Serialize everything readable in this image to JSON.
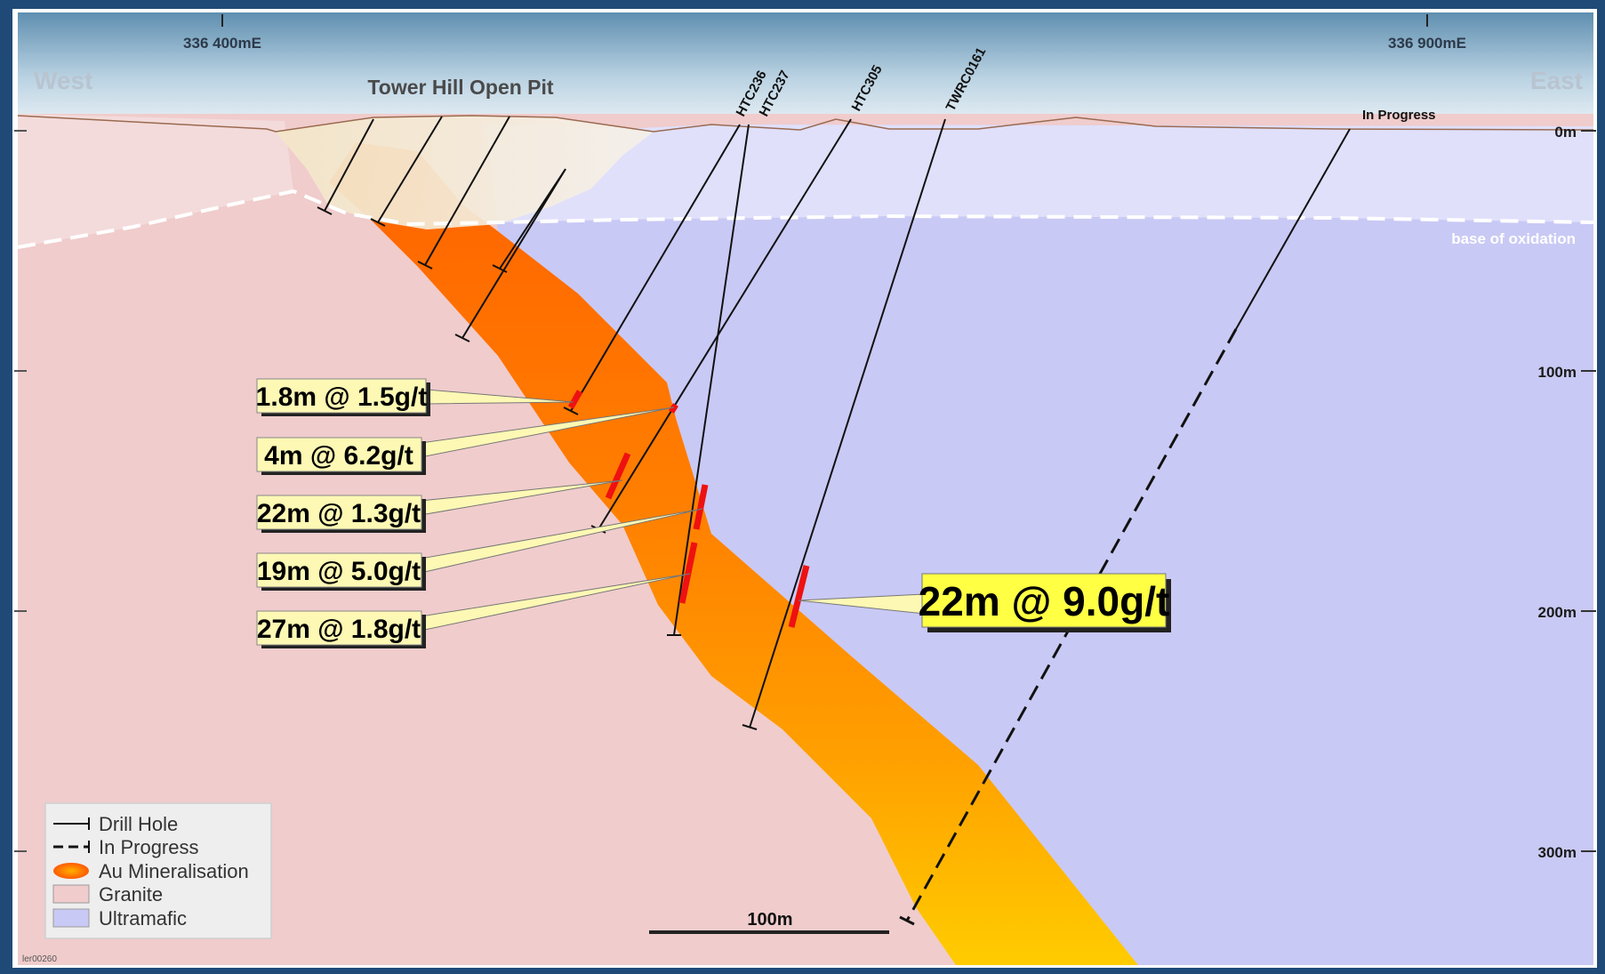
{
  "directions": {
    "west": "West",
    "east": "East"
  },
  "eastings": [
    "336 400mE",
    "336 900mE"
  ],
  "pit_label": "Tower Hill Open Pit",
  "oxidation_label": "base of oxidation",
  "depth_ticks": [
    "0m",
    "100m",
    "200m",
    "300m"
  ],
  "drill_holes": [
    {
      "id": "HTC236",
      "status": "drill-hole"
    },
    {
      "id": "HTC237",
      "status": "drill-hole"
    },
    {
      "id": "HTC305",
      "status": "drill-hole"
    },
    {
      "id": "TWRC0161",
      "status": "drill-hole"
    },
    {
      "id": "In Progress",
      "status": "in-progress"
    }
  ],
  "intercepts": [
    "1.8m @ 1.5g/t",
    "4m @ 6.2g/t",
    "22m @ 1.3g/t",
    "19m @ 5.0g/t",
    "27m @ 1.8g/t"
  ],
  "highlight_intercept": "22m @ 9.0g/t",
  "legend": [
    {
      "label": "Drill Hole",
      "symbol": "solid-line"
    },
    {
      "label": "In Progress",
      "symbol": "dashed-line"
    },
    {
      "label": "Au Mineralisation",
      "symbol": "orange-ellipse"
    },
    {
      "label": "Granite",
      "symbol": "pink-box"
    },
    {
      "label": "Ultramafic",
      "symbol": "lavender-box"
    }
  ],
  "scale_bar": "100m",
  "figure_ref": "ler00260",
  "colors": {
    "granite": "#f0cccc",
    "ultramafic": "#c9c9f5",
    "mineralisation_top": "#ff6a00",
    "mineralisation_bottom": "#ffc800",
    "intercept": "#ee1111",
    "label_box": "#fdf8b4",
    "highlight_box": "#ffff44",
    "frame": "#1f4a78"
  }
}
